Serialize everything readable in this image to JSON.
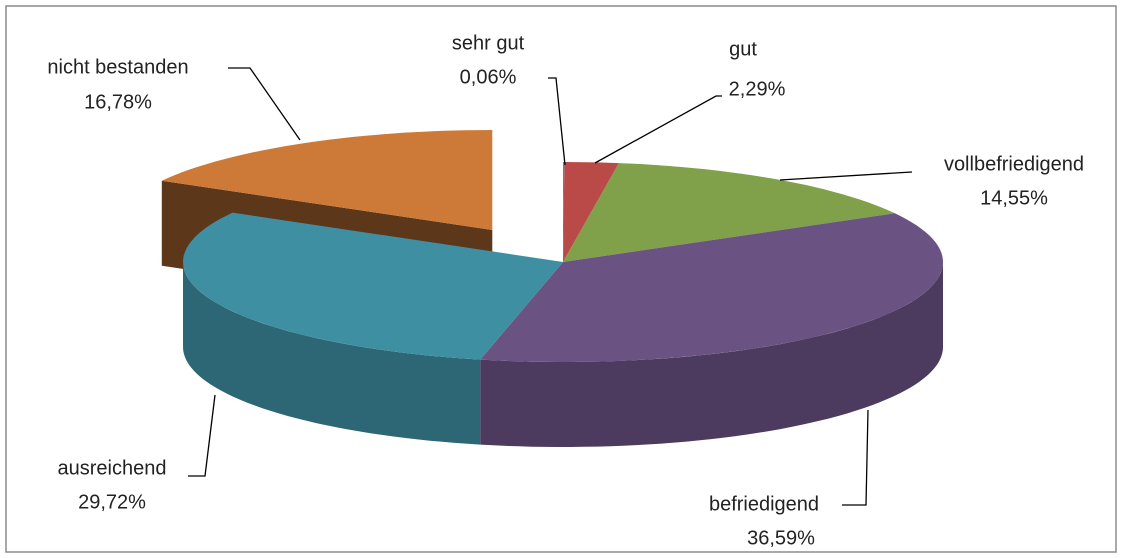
{
  "chart_data": {
    "type": "pie3d",
    "categories": [
      "sehr gut",
      "gut",
      "vollbefriedigend",
      "befriedigend",
      "ausreichend",
      "nicht bestanden"
    ],
    "values": [
      0.06,
      2.29,
      14.55,
      36.59,
      29.72,
      16.78
    ],
    "value_labels": [
      "0,06%",
      "2,29%",
      "14,55%",
      "36,59%",
      "29,72%",
      "16,78%"
    ],
    "colors": [
      "#4f81bd",
      "#b94a47",
      "#80a04a",
      "#6a5283",
      "#3f8fa3",
      "#cd7a38"
    ],
    "exploded": [
      false,
      false,
      false,
      false,
      false,
      true
    ]
  }
}
